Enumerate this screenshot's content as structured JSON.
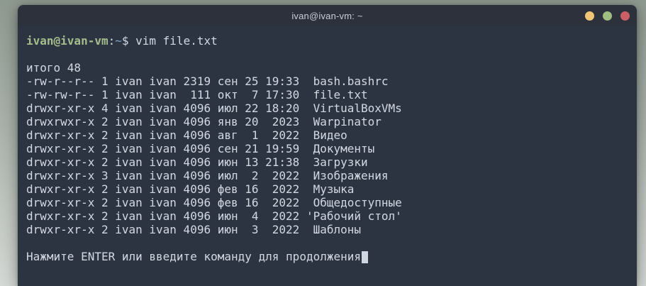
{
  "window": {
    "title": "ivan@ivan-vm: ~",
    "buttons": [
      {
        "name": "minimize",
        "color": "#f0c674"
      },
      {
        "name": "maximize",
        "color": "#a0bd82"
      },
      {
        "name": "close",
        "color": "#ca5f66"
      }
    ]
  },
  "colors": {
    "titlebar_bg": "#2c313c",
    "terminal_bg": "#2d3441",
    "terminal_fg": "#d3d9e3",
    "prompt_user_host": "#a3be8c",
    "prompt_cwd": "#81a1c1",
    "desktop_top": "#8e998f",
    "desktop_bottom": "#d5d9d5"
  },
  "terminal": {
    "prompt": {
      "user_host": "ivan@ivan-vm",
      "colon": ":",
      "cwd": "~",
      "dollar": "$ ",
      "command": "vim file.txt"
    },
    "output": [
      "итого 48",
      "-rw-r--r-- 1 ivan ivan 2319 сен 25 19:33  bash.bashrc",
      "-rw-rw-r-- 1 ivan ivan  111 окт  7 17:30  file.txt",
      "drwxr-xr-x 4 ivan ivan 4096 июл 22 18:20  VirtualBoxVMs",
      "drwxrwxr-x 2 ivan ivan 4096 янв 20  2023  Warpinator",
      "drwxr-xr-x 2 ivan ivan 4096 авг  1  2022  Видео",
      "drwxr-xr-x 2 ivan ivan 4096 сен 21 19:59  Документы",
      "drwxr-xr-x 2 ivan ivan 4096 июн 13 21:38  Загрузки",
      "drwxr-xr-x 3 ivan ivan 4096 июл  2  2022  Изображения",
      "drwxr-xr-x 2 ivan ivan 4096 фев 16  2022  Музыка",
      "drwxr-xr-x 2 ivan ivan 4096 фев 16  2022  Общедоступные",
      "drwxr-xr-x 2 ivan ivan 4096 июн  4  2022 'Рабочий стол'",
      "drwxr-xr-x 2 ivan ivan 4096 июн  3  2022  Шаблоны"
    ],
    "message": "Нажмите ENTER или введите команду для продолжения"
  }
}
